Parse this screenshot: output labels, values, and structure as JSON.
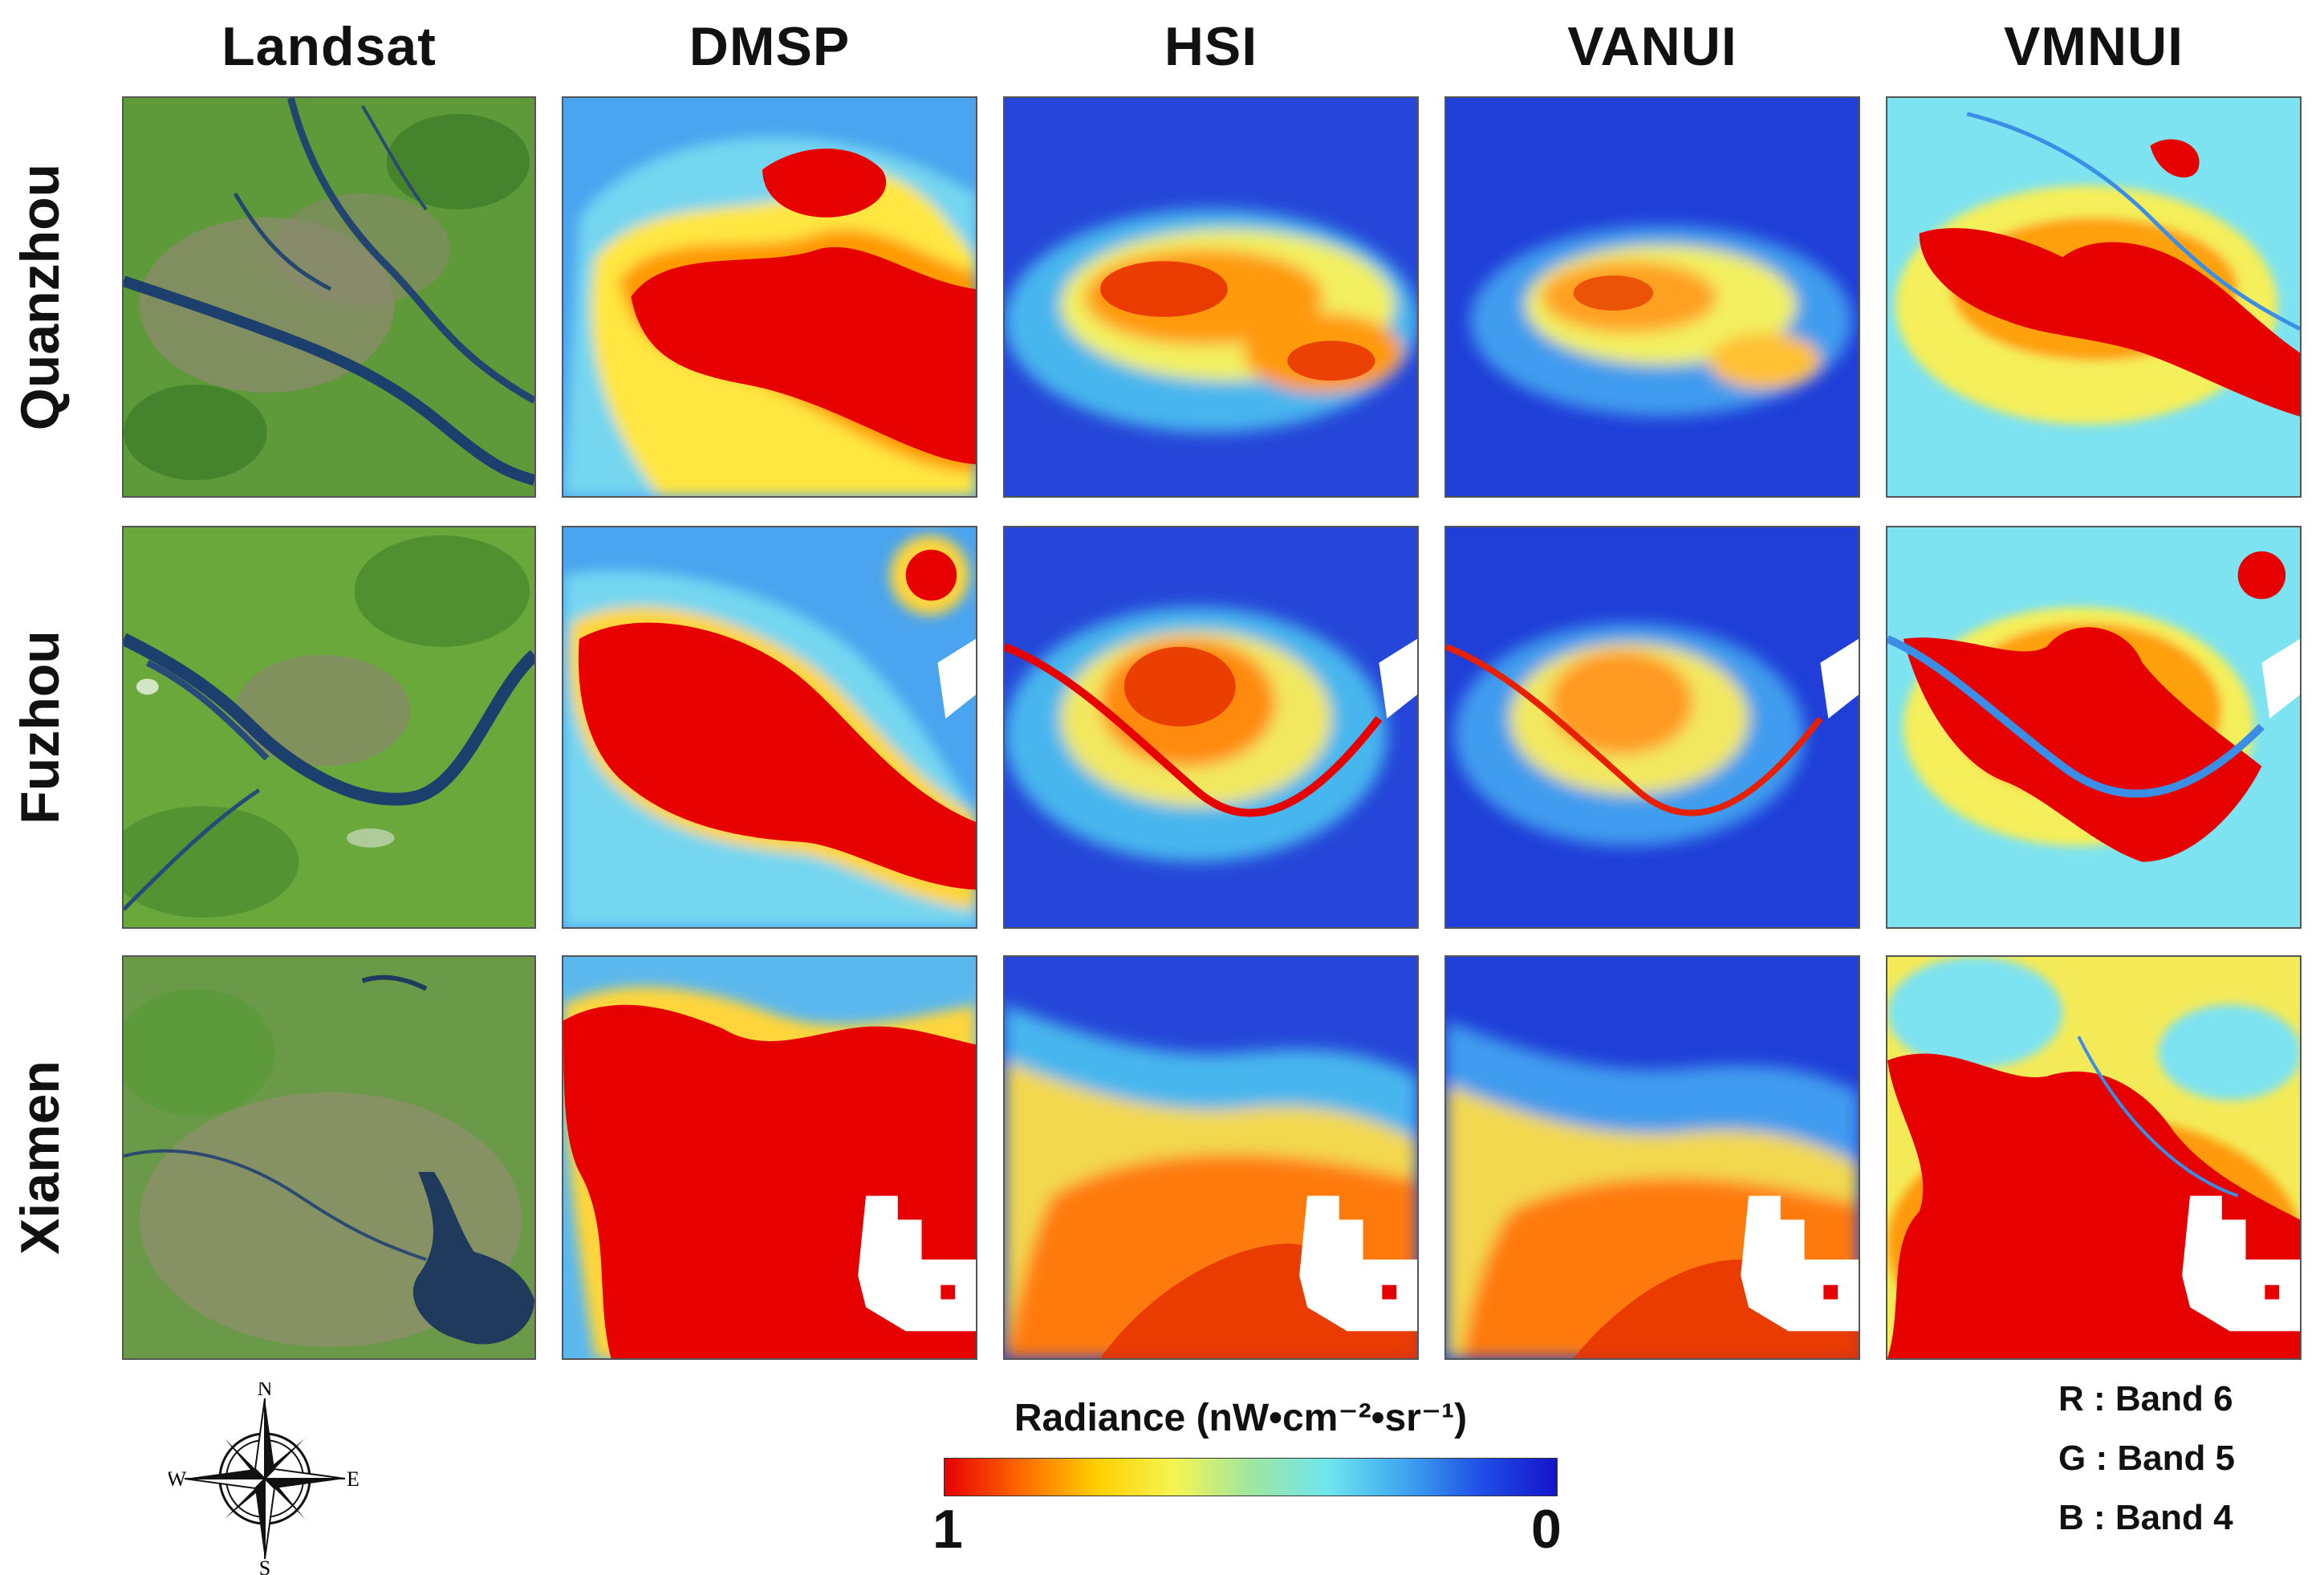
{
  "columns": [
    "Landsat",
    "DMSP",
    "HSI",
    "VANUI",
    "VMNUI"
  ],
  "rows": [
    "Quanzhou",
    "Fuzhou",
    "Xiamen"
  ],
  "legend": {
    "title": "Radiance (nW•cm⁻²•sr⁻¹)",
    "min_label": "1",
    "max_label": "0",
    "colormap": [
      "#e60000",
      "#ff6a00",
      "#ffd000",
      "#f5f550",
      "#9fe6a0",
      "#6fe6ee",
      "#3fa7f0",
      "#1f4fe6",
      "#1414cc"
    ]
  },
  "bands": [
    "R : Band 6",
    "G : Band 5",
    "B : Band 4"
  ],
  "compass": {
    "n": "N",
    "s": "S",
    "e": "E",
    "w": "W"
  }
}
